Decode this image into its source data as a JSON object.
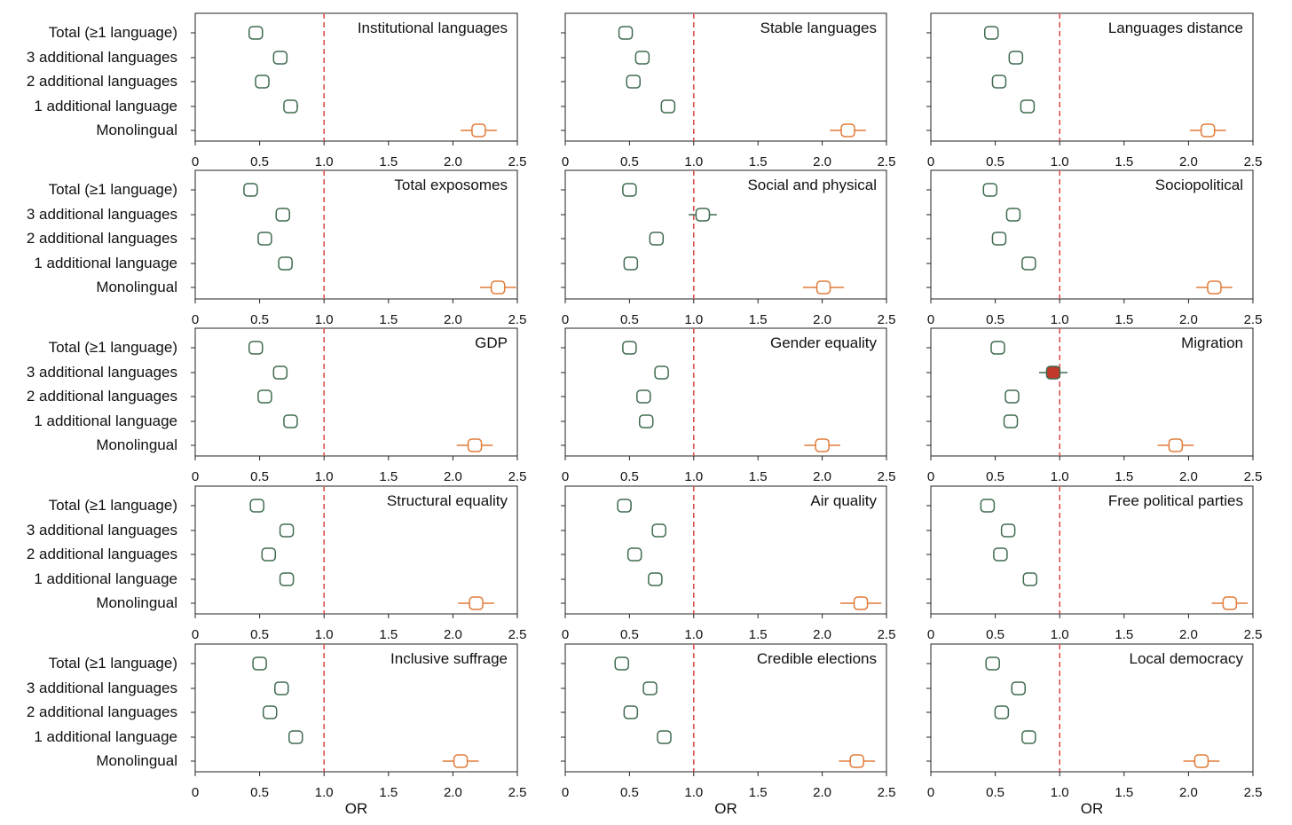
{
  "row_labels": [
    "Total (≥1 language)",
    "3 additional languages",
    "2 additional languages",
    "1 additional language",
    "Monolingual"
  ],
  "tick_labels": [
    "0",
    "0.5",
    "1.0",
    "1.5",
    "2.0",
    "2.5"
  ],
  "xlabel": "OR",
  "colors": {
    "ref_line": "#d9534f",
    "multilingual": "#3f6b4f",
    "monolingual": "#e07b39",
    "significant_fill": "#c0392b",
    "axis": "#222222"
  },
  "chart_data": [
    {
      "type": "scatter",
      "title": "Institutional languages",
      "xlim": [
        0,
        2.5
      ],
      "reference_line": 1.0,
      "series": [
        {
          "categories": [
            "Total (≥1 language)",
            "3 additional languages",
            "2 additional languages",
            "1 additional language",
            "Monolingual"
          ],
          "values": [
            0.47,
            0.66,
            0.52,
            0.74,
            2.2
          ],
          "ci_low": [
            0.43,
            0.62,
            0.48,
            0.69,
            2.06
          ],
          "ci_high": [
            0.51,
            0.7,
            0.56,
            0.8,
            2.34
          ]
        }
      ]
    },
    {
      "type": "scatter",
      "title": "Stable languages",
      "xlim": [
        0,
        2.5
      ],
      "reference_line": 1.0,
      "series": [
        {
          "categories": [
            "Total (≥1 language)",
            "3 additional languages",
            "2 additional languages",
            "1 additional language",
            "Monolingual"
          ],
          "values": [
            0.47,
            0.6,
            0.53,
            0.8,
            2.2
          ],
          "ci_low": [
            0.43,
            0.56,
            0.49,
            0.75,
            2.06
          ],
          "ci_high": [
            0.51,
            0.64,
            0.57,
            0.85,
            2.34
          ]
        }
      ]
    },
    {
      "type": "scatter",
      "title": "Languages distance",
      "xlim": [
        0,
        2.5
      ],
      "reference_line": 1.0,
      "series": [
        {
          "categories": [
            "Total (≥1 language)",
            "3 additional languages",
            "2 additional languages",
            "1 additional language",
            "Monolingual"
          ],
          "values": [
            0.47,
            0.66,
            0.53,
            0.75,
            2.15
          ],
          "ci_low": [
            0.43,
            0.62,
            0.49,
            0.7,
            2.01
          ],
          "ci_high": [
            0.51,
            0.7,
            0.57,
            0.8,
            2.29
          ]
        }
      ]
    },
    {
      "type": "scatter",
      "title": "Total exposomes",
      "xlim": [
        0,
        2.5
      ],
      "reference_line": 1.0,
      "series": [
        {
          "categories": [
            "Total (≥1 language)",
            "3 additional languages",
            "2 additional languages",
            "1 additional language",
            "Monolingual"
          ],
          "values": [
            0.43,
            0.68,
            0.54,
            0.7,
            2.35
          ],
          "ci_low": [
            0.39,
            0.64,
            0.5,
            0.65,
            2.21
          ],
          "ci_high": [
            0.47,
            0.72,
            0.58,
            0.75,
            2.49
          ]
        }
      ]
    },
    {
      "type": "scatter",
      "title": "Social and physical",
      "xlim": [
        0,
        2.5
      ],
      "reference_line": 1.0,
      "series": [
        {
          "categories": [
            "Total (≥1 language)",
            "3 additional languages",
            "2 additional languages",
            "1 additional language",
            "Monolingual"
          ],
          "values": [
            0.5,
            1.07,
            0.71,
            0.51,
            2.01
          ],
          "ci_low": [
            0.46,
            0.96,
            0.67,
            0.47,
            1.85
          ],
          "ci_high": [
            0.54,
            1.18,
            0.75,
            0.55,
            2.17
          ]
        }
      ]
    },
    {
      "type": "scatter",
      "title": "Sociopolitical",
      "xlim": [
        0,
        2.5
      ],
      "reference_line": 1.0,
      "series": [
        {
          "categories": [
            "Total (≥1 language)",
            "3 additional languages",
            "2 additional languages",
            "1 additional language",
            "Monolingual"
          ],
          "values": [
            0.46,
            0.64,
            0.53,
            0.76,
            2.2
          ],
          "ci_low": [
            0.42,
            0.6,
            0.49,
            0.71,
            2.06
          ],
          "ci_high": [
            0.5,
            0.68,
            0.57,
            0.81,
            2.34
          ]
        }
      ]
    },
    {
      "type": "scatter",
      "title": "GDP",
      "xlim": [
        0,
        2.5
      ],
      "reference_line": 1.0,
      "series": [
        {
          "categories": [
            "Total (≥1 language)",
            "3 additional languages",
            "2 additional languages",
            "1 additional language",
            "Monolingual"
          ],
          "values": [
            0.47,
            0.66,
            0.54,
            0.74,
            2.17
          ],
          "ci_low": [
            0.43,
            0.62,
            0.5,
            0.69,
            2.03
          ],
          "ci_high": [
            0.51,
            0.7,
            0.58,
            0.79,
            2.31
          ]
        }
      ]
    },
    {
      "type": "scatter",
      "title": "Gender equality",
      "xlim": [
        0,
        2.5
      ],
      "reference_line": 1.0,
      "series": [
        {
          "categories": [
            "Total (≥1 language)",
            "3 additional languages",
            "2 additional languages",
            "1 additional language",
            "Monolingual"
          ],
          "values": [
            0.5,
            0.75,
            0.61,
            0.63,
            2.0
          ],
          "ci_low": [
            0.46,
            0.71,
            0.57,
            0.59,
            1.86
          ],
          "ci_high": [
            0.54,
            0.79,
            0.65,
            0.67,
            2.14
          ]
        }
      ]
    },
    {
      "type": "scatter",
      "title": "Migration",
      "xlim": [
        0,
        2.5
      ],
      "reference_line": 1.0,
      "series": [
        {
          "categories": [
            "Total (≥1 language)",
            "3 additional languages",
            "2 additional languages",
            "1 additional language",
            "Monolingual"
          ],
          "values": [
            0.52,
            0.95,
            0.63,
            0.62,
            1.9
          ],
          "ci_low": [
            0.48,
            0.84,
            0.59,
            0.58,
            1.76
          ],
          "ci_high": [
            0.56,
            1.06,
            0.67,
            0.66,
            2.04
          ],
          "significant_marker_index": 1
        }
      ]
    },
    {
      "type": "scatter",
      "title": "Structural equality",
      "xlim": [
        0,
        2.5
      ],
      "reference_line": 1.0,
      "series": [
        {
          "categories": [
            "Total (≥1 language)",
            "3 additional languages",
            "2 additional languages",
            "1 additional language",
            "Monolingual"
          ],
          "values": [
            0.48,
            0.71,
            0.57,
            0.71,
            2.18
          ],
          "ci_low": [
            0.44,
            0.66,
            0.53,
            0.66,
            2.04
          ],
          "ci_high": [
            0.52,
            0.76,
            0.61,
            0.76,
            2.32
          ]
        }
      ]
    },
    {
      "type": "scatter",
      "title": "Air quality",
      "xlim": [
        0,
        2.5
      ],
      "reference_line": 1.0,
      "series": [
        {
          "categories": [
            "Total (≥1 language)",
            "3 additional languages",
            "2 additional languages",
            "1 additional language",
            "Monolingual"
          ],
          "values": [
            0.46,
            0.73,
            0.54,
            0.7,
            2.3
          ],
          "ci_low": [
            0.42,
            0.69,
            0.5,
            0.66,
            2.14
          ],
          "ci_high": [
            0.5,
            0.77,
            0.58,
            0.74,
            2.46
          ]
        }
      ]
    },
    {
      "type": "scatter",
      "title": "Free political parties",
      "xlim": [
        0,
        2.5
      ],
      "reference_line": 1.0,
      "series": [
        {
          "categories": [
            "Total (≥1 language)",
            "3 additional languages",
            "2 additional languages",
            "1 additional language",
            "Monolingual"
          ],
          "values": [
            0.44,
            0.6,
            0.54,
            0.77,
            2.32
          ],
          "ci_low": [
            0.4,
            0.56,
            0.5,
            0.72,
            2.18
          ],
          "ci_high": [
            0.48,
            0.64,
            0.58,
            0.82,
            2.46
          ]
        }
      ]
    },
    {
      "type": "scatter",
      "title": "Inclusive suffrage",
      "xlim": [
        0,
        2.5
      ],
      "reference_line": 1.0,
      "series": [
        {
          "categories": [
            "Total (≥1 language)",
            "3 additional languages",
            "2 additional languages",
            "1 additional language",
            "Monolingual"
          ],
          "values": [
            0.5,
            0.67,
            0.58,
            0.78,
            2.06
          ],
          "ci_low": [
            0.46,
            0.63,
            0.54,
            0.73,
            1.92
          ],
          "ci_high": [
            0.54,
            0.71,
            0.62,
            0.83,
            2.2
          ]
        }
      ]
    },
    {
      "type": "scatter",
      "title": "Credible elections",
      "xlim": [
        0,
        2.5
      ],
      "reference_line": 1.0,
      "series": [
        {
          "categories": [
            "Total (≥1 language)",
            "3 additional languages",
            "2 additional languages",
            "1 additional language",
            "Monolingual"
          ],
          "values": [
            0.44,
            0.66,
            0.51,
            0.77,
            2.27
          ],
          "ci_low": [
            0.4,
            0.62,
            0.47,
            0.72,
            2.13
          ],
          "ci_high": [
            0.48,
            0.7,
            0.55,
            0.82,
            2.41
          ]
        }
      ]
    },
    {
      "type": "scatter",
      "title": "Local democracy",
      "xlim": [
        0,
        2.5
      ],
      "reference_line": 1.0,
      "series": [
        {
          "categories": [
            "Total (≥1 language)",
            "3 additional languages",
            "2 additional languages",
            "1 additional language",
            "Monolingual"
          ],
          "values": [
            0.48,
            0.68,
            0.55,
            0.76,
            2.1
          ],
          "ci_low": [
            0.44,
            0.64,
            0.51,
            0.71,
            1.96
          ],
          "ci_high": [
            0.52,
            0.72,
            0.59,
            0.81,
            2.24
          ]
        }
      ]
    }
  ]
}
